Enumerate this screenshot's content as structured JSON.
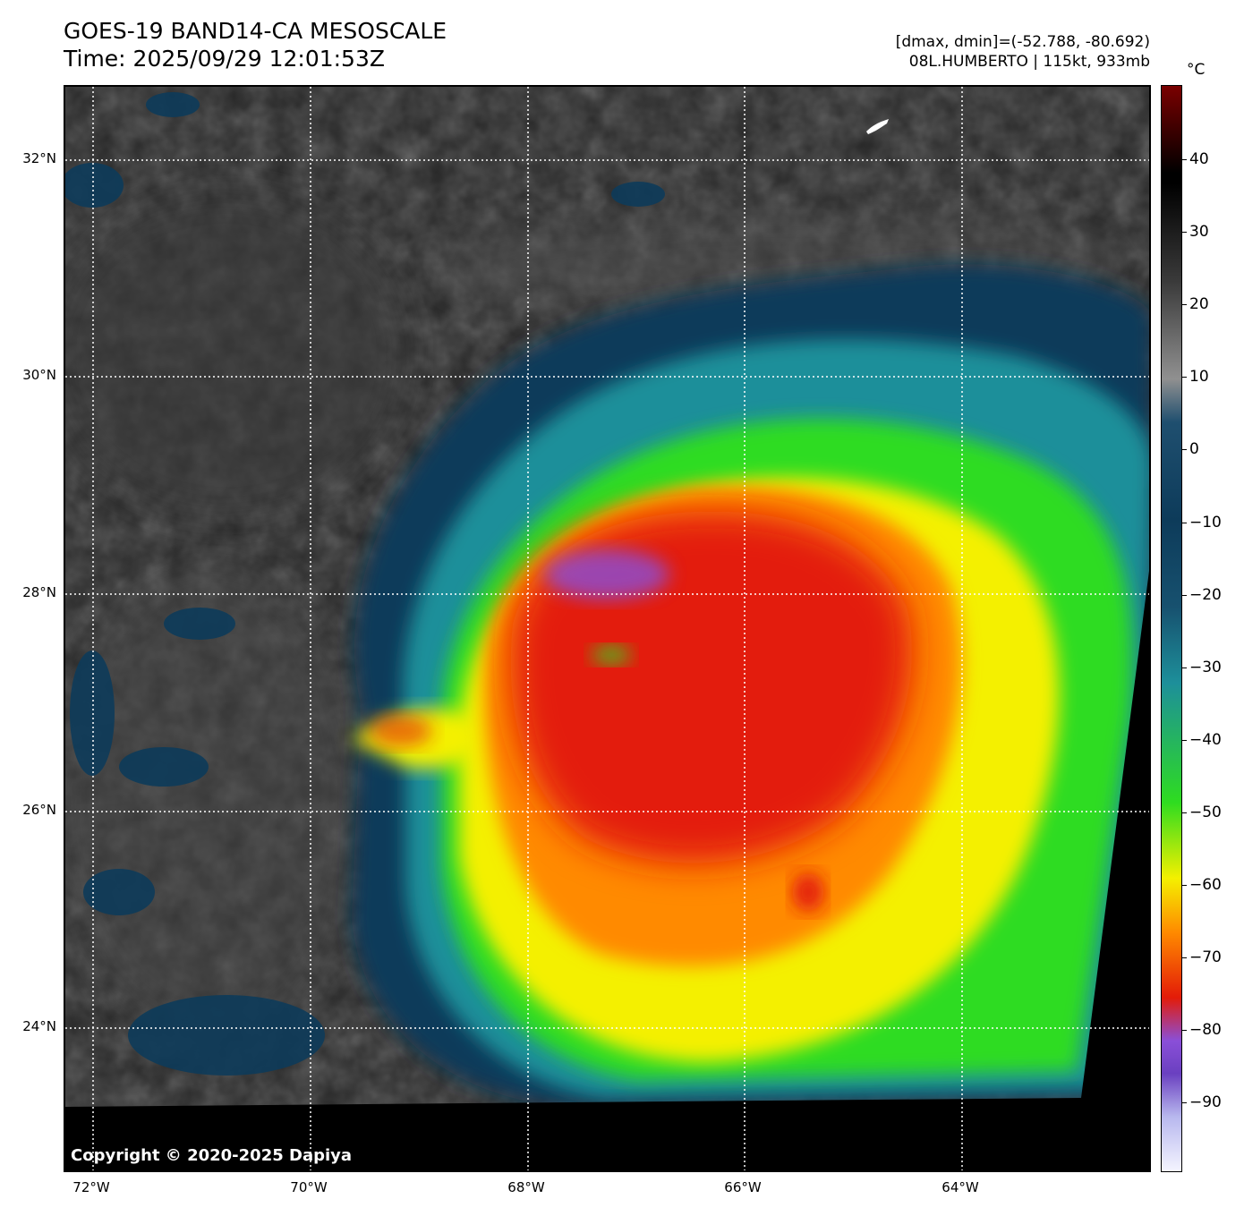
{
  "header": {
    "title": "GOES-19 BAND14-CA MESOSCALE",
    "time": "Time: 2025/09/29 12:01:53Z",
    "range": "[dmax, dmin]=(-52.788, -80.692)",
    "storm": "08L.HUMBERTO | 115kt, 933mb"
  },
  "map": {
    "copyright": "Copyright © 2020-2025 Dapiya",
    "lat_labels": [
      "32°N",
      "30°N",
      "28°N",
      "26°N",
      "24°N"
    ],
    "lon_labels": [
      "72°W",
      "70°W",
      "68°W",
      "66°W",
      "64°W"
    ]
  },
  "colorbar": {
    "unit": "°C",
    "ticks": [
      "40",
      "30",
      "20",
      "10",
      "0",
      "−10",
      "−20",
      "−30",
      "−40",
      "−50",
      "−60",
      "−70",
      "−80",
      "−90"
    ],
    "colors": {
      "warm_top": "#7a0000",
      "black": "#000000",
      "gray": "#909090",
      "dark_blue": "#0d3b5a",
      "teal": "#1d8f9a",
      "green": "#2edc20",
      "yellow": "#f4f000",
      "orange": "#ff8a00",
      "red": "#e31b08",
      "purple": "#8a4fd8",
      "pale": "#f4f4ff"
    }
  }
}
